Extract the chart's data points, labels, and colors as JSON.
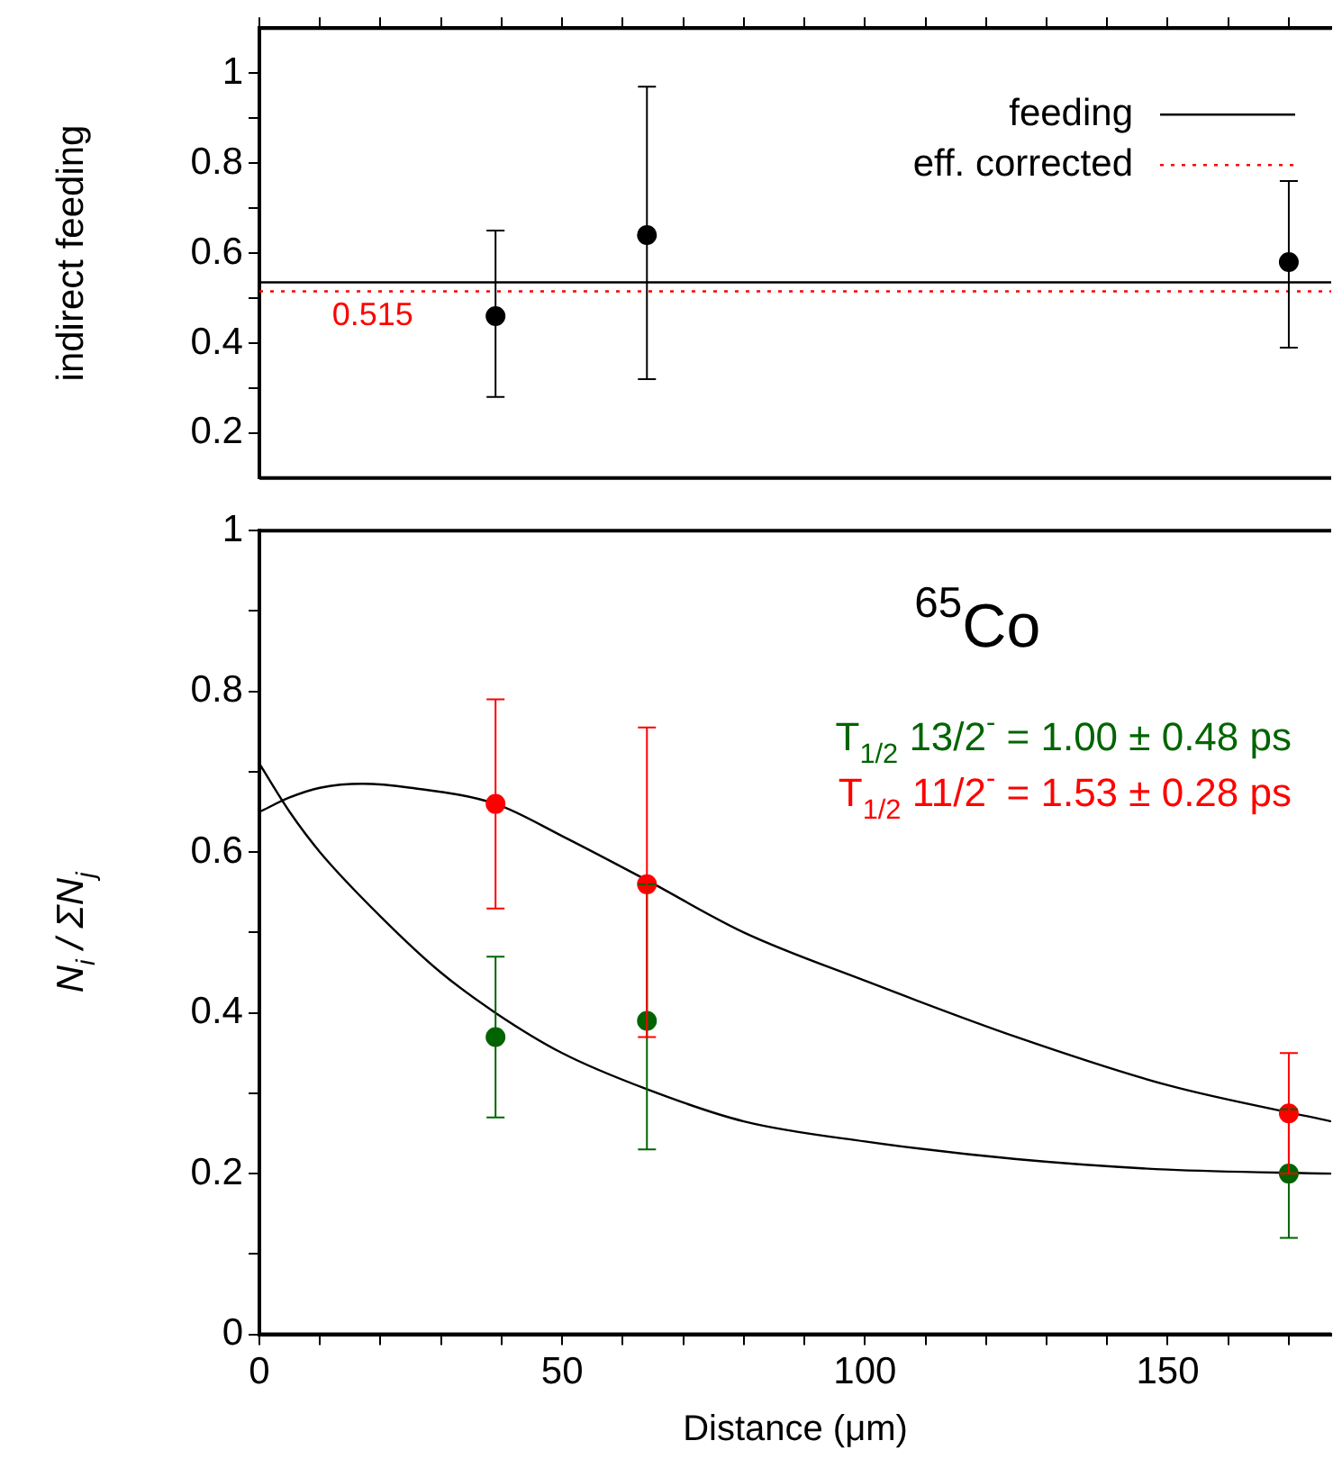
{
  "chart_data": [
    {
      "type": "scatter",
      "ylabel": "indirect feeding",
      "xlim": [
        0,
        177
      ],
      "ylim": [
        0.1,
        1.1
      ],
      "xticks": [
        0,
        {
          "value": 10,
          "label": null
        },
        {
          "value": 20,
          "label": null
        },
        {
          "value": 30,
          "label": null
        },
        {
          "value": 40,
          "label": null
        },
        50,
        {
          "value": 60,
          "label": null
        },
        {
          "value": 70,
          "label": null
        },
        {
          "value": 80,
          "label": null
        },
        {
          "value": 90,
          "label": null
        },
        100,
        {
          "value": 110,
          "label": null
        },
        {
          "value": 120,
          "label": null
        },
        {
          "value": 130,
          "label": null
        },
        {
          "value": 140,
          "label": null
        },
        150,
        {
          "value": 160,
          "label": null
        },
        {
          "value": 170,
          "label": null
        }
      ],
      "yticks": [
        0.2,
        {
          "value": 0.3,
          "label": null
        },
        0.4,
        {
          "value": 0.5,
          "label": null
        },
        0.6,
        {
          "value": 0.7,
          "label": null
        },
        0.8,
        {
          "value": 0.9,
          "label": null
        },
        1
      ],
      "tick_labels": "y",
      "grid": false,
      "legend": "top right",
      "marker": "circle",
      "series": [
        {
          "color": "#000000",
          "x": [
            39,
            64,
            170
          ],
          "values": [
            0.46,
            0.64,
            0.58
          ],
          "errors": [
            [
              0.28,
              0.65
            ],
            [
              0.32,
              0.97
            ],
            [
              0.39,
              0.76
            ]
          ]
        }
      ],
      "ref_lines": [
        {
          "axis": "y",
          "value": 0.535,
          "label": "feeding",
          "color": "#000000",
          "line_style": "solid"
        },
        {
          "axis": "y",
          "value": 0.515,
          "label": "eff. corrected",
          "color": "#ff0000",
          "line_style": "dotted"
        }
      ],
      "annotations": [
        {
          "text": "0.515",
          "x": 12,
          "y": 0.515
        }
      ]
    },
    {
      "type": "scatter",
      "xlabel": "Distance (μm)",
      "ylabel": "N$_{i}$ / ΣN$_{j}$",
      "xlim": [
        0,
        177
      ],
      "ylim": [
        0,
        1
      ],
      "xticks": [
        0,
        {
          "value": 10,
          "label": null
        },
        {
          "value": 20,
          "label": null
        },
        {
          "value": 30,
          "label": null
        },
        {
          "value": 40,
          "label": null
        },
        50,
        {
          "value": 60,
          "label": null
        },
        {
          "value": 70,
          "label": null
        },
        {
          "value": 80,
          "label": null
        },
        {
          "value": 90,
          "label": null
        },
        100,
        {
          "value": 110,
          "label": null
        },
        {
          "value": 120,
          "label": null
        },
        {
          "value": 130,
          "label": null
        },
        {
          "value": 140,
          "label": null
        },
        150,
        {
          "value": 160,
          "label": null
        },
        {
          "value": 170,
          "label": null
        }
      ],
      "yticks": [
        0,
        {
          "value": 0.1,
          "label": null
        },
        0.2,
        {
          "value": 0.3,
          "label": null
        },
        0.4,
        {
          "value": 0.5,
          "label": null
        },
        0.6,
        {
          "value": 0.7,
          "label": null
        },
        0.8,
        {
          "value": 0.9,
          "label": null
        },
        1
      ],
      "grid": false,
      "legend": "top right",
      "marker": "circle",
      "series": [
        {
          "name": "T$_{1/2}$ 13/2$^{-}$ = 1.00 ± 0.48 ps",
          "color": "#006400",
          "x": [
            39,
            64,
            170
          ],
          "values": [
            0.37,
            0.39,
            0.2
          ],
          "errors": [
            [
              0.27,
              0.47
            ],
            [
              0.23,
              0.56
            ],
            [
              0.12,
              0.28
            ]
          ]
        },
        {
          "name": "T$_{1/2}$ 11/2$^{-}$ = 1.53 ± 0.28 ps",
          "color": "#ff0000",
          "x": [
            39,
            64,
            170
          ],
          "values": [
            0.66,
            0.56,
            0.275
          ],
          "errors": [
            [
              0.53,
              0.79
            ],
            [
              0.37,
              0.755
            ],
            [
              0.2,
              0.35
            ]
          ]
        },
        {
          "type": "line",
          "marker": "none",
          "color": "#000000",
          "x": [
            0,
            5,
            10,
            17,
            25,
            39,
            50,
            64,
            80,
            100,
            125,
            150,
            177
          ],
          "values": [
            0.65,
            0.668,
            0.68,
            0.685,
            0.68,
            0.66,
            0.62,
            0.565,
            0.5,
            0.44,
            0.37,
            0.31,
            0.265
          ]
        },
        {
          "type": "line",
          "marker": "none",
          "color": "#000000",
          "x": [
            0,
            5,
            10,
            20,
            30,
            39,
            50,
            64,
            80,
            100,
            125,
            150,
            177
          ],
          "values": [
            0.71,
            0.65,
            0.6,
            0.52,
            0.45,
            0.4,
            0.35,
            0.305,
            0.265,
            0.24,
            0.218,
            0.205,
            0.2
          ]
        }
      ],
      "annotations": [
        "$^{65}$Co"
      ]
    }
  ]
}
